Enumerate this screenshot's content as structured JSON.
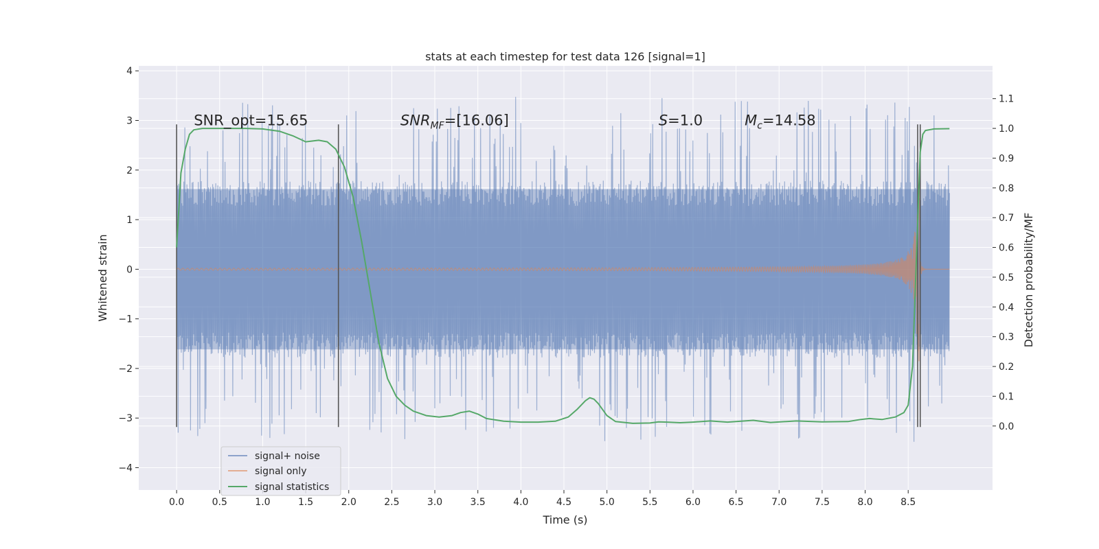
{
  "chart_data": {
    "type": "line",
    "title": "stats at each timestep for test data 126 [signal=1]",
    "xlabel": "Time (s)",
    "ylabel": "Whitened strain",
    "ylabel_right": "Detection probability/MF",
    "xlim": [
      -0.44,
      9.48
    ],
    "ylim": [
      -4.45,
      4.1
    ],
    "ylim_right": [
      -0.215,
      1.21
    ],
    "x_ticks": [
      0.0,
      0.5,
      1.0,
      1.5,
      2.0,
      2.5,
      3.0,
      3.5,
      4.0,
      4.5,
      5.0,
      5.5,
      6.0,
      6.5,
      7.0,
      7.5,
      8.0,
      8.5
    ],
    "x_tick_labels": [
      "0.0",
      "0.5",
      "1.0",
      "1.5",
      "2.0",
      "2.5",
      "3.0",
      "3.5",
      "4.0",
      "4.5",
      "5.0",
      "5.5",
      "6.0",
      "6.5",
      "7.0",
      "7.5",
      "8.0",
      "8.5"
    ],
    "y_ticks": [
      -4,
      -3,
      -2,
      -1,
      0,
      1,
      2,
      3,
      4
    ],
    "y_tick_labels": [
      "−4",
      "−3",
      "−2",
      "−1",
      "0",
      "1",
      "2",
      "3",
      "4"
    ],
    "y_right_ticks": [
      0.0,
      0.1,
      0.2,
      0.3,
      0.4,
      0.5,
      0.6,
      0.7,
      0.8,
      0.9,
      1.0,
      1.1
    ],
    "y_right_tick_labels": [
      "0.0",
      "0.1",
      "0.2",
      "0.3",
      "0.4",
      "0.5",
      "0.6",
      "0.7",
      "0.8",
      "0.9",
      "1.0",
      "1.1"
    ],
    "grid": true,
    "legend_position": "bottom-left",
    "signal_duration": [
      0.0,
      8.98
    ],
    "merger_time": 8.63,
    "vlines": [
      0.0,
      1.88,
      8.61,
      8.64
    ],
    "vline_range": [
      -3.18,
      2.92
    ],
    "annotations": [
      {
        "text": "SNR_opt=15.65",
        "x": 0.2,
        "y": 3.0
      },
      {
        "text": "SNR",
        "sub": "MF",
        "suffix": "=[16.06]",
        "x": 2.6,
        "y": 3.0
      },
      {
        "text": "S",
        "sub": "",
        "suffix": "=1.0",
        "x": 5.6,
        "y": 3.0
      },
      {
        "text": "M",
        "sub": "c",
        "suffix": "=14.58",
        "x": 6.6,
        "y": 3.0
      }
    ],
    "series": [
      {
        "name": "signal+ noise",
        "axis": "left",
        "color": "#4c72b0",
        "opacity": 0.5,
        "style": "noise",
        "core_amplitude": 1.7,
        "spike_max": 3.5
      },
      {
        "name": "signal only",
        "axis": "left",
        "color": "#dd8452",
        "opacity": 0.55,
        "style": "chirp",
        "chirp_peak_amplitude": 1.9
      },
      {
        "name": "signal statistics",
        "axis": "right",
        "color": "#55a868",
        "opacity": 1,
        "style": "line",
        "x": [
          0.0,
          0.05,
          0.1,
          0.15,
          0.2,
          0.3,
          0.5,
          0.8,
          1.0,
          1.2,
          1.35,
          1.5,
          1.65,
          1.75,
          1.85,
          1.95,
          2.05,
          2.15,
          2.25,
          2.35,
          2.45,
          2.55,
          2.65,
          2.75,
          2.9,
          3.05,
          3.2,
          3.3,
          3.4,
          3.5,
          3.6,
          3.8,
          4.0,
          4.2,
          4.4,
          4.55,
          4.65,
          4.75,
          4.8,
          4.85,
          4.9,
          5.0,
          5.1,
          5.3,
          5.5,
          5.6,
          5.7,
          5.85,
          6.0,
          6.2,
          6.4,
          6.7,
          6.9,
          7.2,
          7.5,
          7.8,
          7.95,
          8.05,
          8.2,
          8.35,
          8.45,
          8.5,
          8.55,
          8.6,
          8.64,
          8.67,
          8.7,
          8.8,
          8.98
        ],
        "y": [
          0.6,
          0.85,
          0.93,
          0.98,
          0.995,
          1.0,
          1.0,
          1.0,
          0.998,
          0.99,
          0.975,
          0.955,
          0.96,
          0.955,
          0.93,
          0.87,
          0.77,
          0.62,
          0.45,
          0.28,
          0.16,
          0.1,
          0.07,
          0.05,
          0.035,
          0.03,
          0.035,
          0.045,
          0.05,
          0.04,
          0.025,
          0.016,
          0.013,
          0.013,
          0.016,
          0.03,
          0.055,
          0.085,
          0.095,
          0.09,
          0.075,
          0.035,
          0.015,
          0.009,
          0.01,
          0.014,
          0.013,
          0.011,
          0.013,
          0.017,
          0.013,
          0.019,
          0.012,
          0.017,
          0.014,
          0.015,
          0.022,
          0.025,
          0.022,
          0.03,
          0.045,
          0.07,
          0.2,
          0.6,
          0.92,
          0.98,
          0.993,
          0.998,
          0.999
        ]
      }
    ]
  }
}
